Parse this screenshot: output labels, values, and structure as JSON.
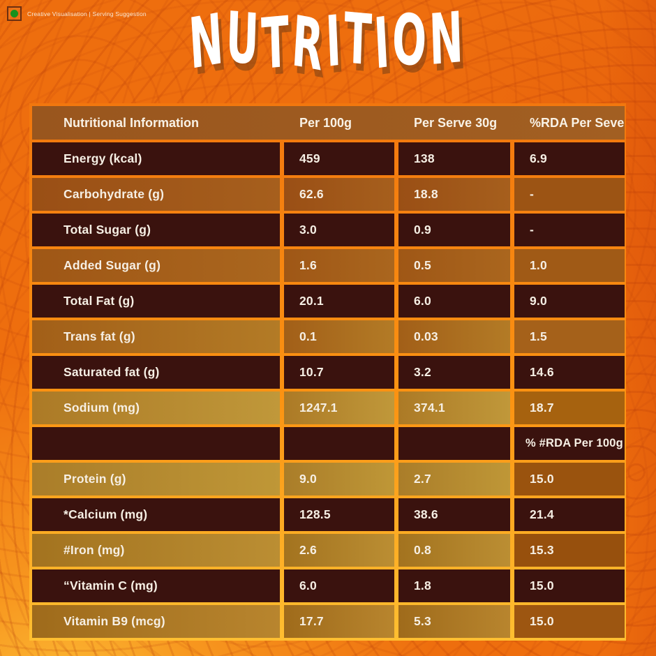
{
  "meta": {
    "disclaimer": "Creative Visualisation | Serving Suggestion",
    "veg_mark_color": "#18911d"
  },
  "title": "NUTRITION",
  "colors": {
    "page_bg": "#ee6e0e",
    "frame_gradient_top": "#f2770e",
    "frame_gradient_bottom": "#ffbf31",
    "header_bg": "#99561e",
    "dark_cell": "#3a120e",
    "text": "#f6efe4",
    "title_shadow": "rgba(105,58,22,0.5)"
  },
  "table": {
    "columns": [
      "Nutritional Information",
      "Per 100g",
      "Per Serve 30g",
      "%RDA Per Seve"
    ],
    "rows": [
      {
        "label": "Energy (kcal)",
        "per100": "459",
        "serve": "138",
        "rda": "6.9",
        "variant": "dark"
      },
      {
        "label": "Carbohydrate (g)",
        "per100": "62.6",
        "serve": "18.8",
        "rda": "-",
        "variant": "light",
        "bg": [
          "#9a4f15",
          "#a65f1d"
        ],
        "bg4": "#9c5414"
      },
      {
        "label": "Total Sugar (g)",
        "per100": "3.0",
        "serve": "0.9",
        "rda": "-",
        "variant": "dark"
      },
      {
        "label": "Added Sugar (g)",
        "per100": "1.6",
        "serve": "0.5",
        "rda": "1.0",
        "variant": "light",
        "bg": [
          "#9f5716",
          "#aa661e"
        ],
        "bg4": "#a05a16"
      },
      {
        "label": "Total Fat (g)",
        "per100": "20.1",
        "serve": "6.0",
        "rda": "9.0",
        "variant": "dark"
      },
      {
        "label": "Trans fat (g)",
        "per100": "0.1",
        "serve": "0.03",
        "rda": "1.5",
        "variant": "light",
        "bg": [
          "#a25f18",
          "#b37b26"
        ],
        "bg4": "#a5611a"
      },
      {
        "label": "Saturated fat (g)",
        "per100": "10.7",
        "serve": "3.2",
        "rda": "14.6",
        "variant": "dark"
      },
      {
        "label": "Sodium (mg)",
        "per100": "1247.1",
        "serve": "374.1",
        "rda": "18.7",
        "variant": "light",
        "bg": [
          "#ac7a26",
          "#c0983a"
        ],
        "bg4": "#a6620f"
      },
      {
        "label": "",
        "per100": "",
        "serve": "",
        "rda": "% #RDA Per 100g",
        "variant": "dark",
        "separator": true
      },
      {
        "label": "Protein (g)",
        "per100": "9.0",
        "serve": "2.7",
        "rda": "15.0",
        "variant": "light",
        "bg": [
          "#aa7d29",
          "#bf9737"
        ],
        "bg4": "#9a530e"
      },
      {
        "label": "*Calcium (mg)",
        "per100": "128.5",
        "serve": "38.6",
        "rda": "21.4",
        "variant": "dark"
      },
      {
        "label": "#Iron (mg)",
        "per100": "2.6",
        "serve": "0.8",
        "rda": "15.3",
        "variant": "light",
        "bg": [
          "#a3731f",
          "#bb8e33"
        ],
        "bg4": "#97500d"
      },
      {
        "label": "“Vitamin C (mg)",
        "per100": "6.0",
        "serve": "1.8",
        "rda": "15.0",
        "variant": "dark"
      },
      {
        "label": "Vitamin B9 (mcg)",
        "per100": "17.7",
        "serve": "5.3",
        "rda": "15.0",
        "variant": "light",
        "bg": [
          "#9f6b1b",
          "#b8852e"
        ],
        "bg4": "#9d5611"
      }
    ]
  }
}
